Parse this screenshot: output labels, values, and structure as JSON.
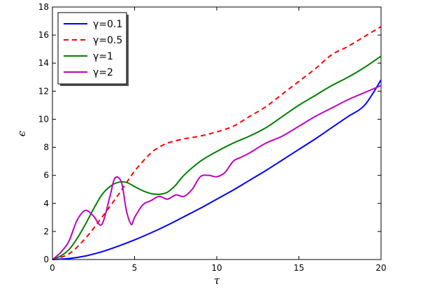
{
  "chart_data": {
    "type": "line",
    "title": "",
    "xlabel": "τ",
    "ylabel": "ϵ",
    "xlim": [
      0,
      20
    ],
    "ylim": [
      0,
      18
    ],
    "xticks": [
      "0",
      "5",
      "10",
      "15",
      "20"
    ],
    "yticks": [
      "0",
      "2",
      "4",
      "6",
      "8",
      "10",
      "12",
      "14",
      "16",
      "18"
    ],
    "grid": false,
    "legend_position": "top-left",
    "series": [
      {
        "name": "γ=0.1",
        "color": "#0000ff",
        "style": "solid",
        "x": [
          0,
          1,
          2,
          3,
          4,
          5,
          6,
          7,
          8,
          9,
          10,
          11,
          12,
          13,
          14,
          15,
          16,
          17,
          18,
          19,
          20
        ],
        "y": [
          0,
          0.07,
          0.25,
          0.55,
          0.95,
          1.4,
          1.9,
          2.45,
          3.05,
          3.65,
          4.3,
          4.95,
          5.65,
          6.35,
          7.1,
          7.85,
          8.6,
          9.4,
          10.2,
          11.0,
          12.8
        ]
      },
      {
        "name": "γ=0.5",
        "color": "#ff0000",
        "style": "dashed",
        "x": [
          0,
          1,
          2,
          3,
          4,
          5,
          6,
          6.5,
          7,
          8,
          9,
          10,
          11,
          12,
          13,
          14,
          15,
          16,
          17,
          18,
          19,
          20
        ],
        "y": [
          0,
          0.4,
          1.5,
          3.0,
          4.6,
          6.3,
          7.6,
          8.0,
          8.3,
          8.6,
          8.8,
          9.1,
          9.5,
          10.2,
          10.9,
          11.8,
          12.7,
          13.6,
          14.6,
          15.2,
          15.9,
          16.6
        ]
      },
      {
        "name": "γ=1",
        "color": "#008000",
        "style": "solid",
        "x": [
          0,
          0.5,
          1,
          1.5,
          2,
          2.5,
          3,
          3.5,
          4,
          4.5,
          5,
          5.5,
          6,
          6.5,
          7,
          7.5,
          8,
          9,
          10,
          11,
          12,
          13,
          14,
          15,
          16,
          17,
          18,
          19,
          20
        ],
        "y": [
          0,
          0.25,
          0.7,
          1.5,
          2.5,
          3.6,
          4.6,
          5.2,
          5.5,
          5.5,
          5.2,
          4.9,
          4.7,
          4.65,
          4.8,
          5.3,
          6.0,
          7.0,
          7.7,
          8.3,
          8.8,
          9.4,
          10.2,
          11.0,
          11.7,
          12.4,
          13.0,
          13.7,
          14.5
        ]
      },
      {
        "name": "γ=2",
        "color": "#bf00bf",
        "style": "solid",
        "x": [
          0,
          0.5,
          1,
          1.5,
          2,
          2.5,
          3,
          3.5,
          3.8,
          4.2,
          4.5,
          4.8,
          5,
          5.5,
          6,
          6.5,
          7,
          7.5,
          8,
          8.5,
          9,
          9.5,
          10,
          10.5,
          11,
          11.5,
          12,
          13,
          14,
          15,
          16,
          17,
          18,
          19,
          20
        ],
        "y": [
          0,
          0.5,
          1.3,
          2.8,
          3.5,
          3.1,
          2.5,
          4.5,
          5.8,
          5.5,
          3.5,
          2.5,
          3.0,
          3.9,
          4.2,
          4.5,
          4.3,
          4.6,
          4.5,
          5.0,
          5.9,
          6.0,
          5.9,
          6.2,
          7.0,
          7.3,
          7.6,
          8.3,
          8.8,
          9.5,
          10.2,
          10.8,
          11.4,
          11.9,
          12.4
        ]
      }
    ]
  }
}
